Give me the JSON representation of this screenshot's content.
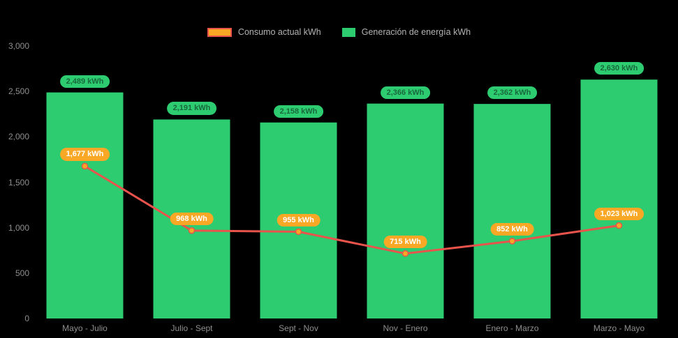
{
  "chart_data": {
    "type": "bar",
    "subtype": "bar-line-combo",
    "title": "",
    "categories": [
      "Mayo - Julio",
      "Julio - Sept",
      "Sept - Nov",
      "Nov - Enero",
      "Enero - Marzo",
      "Marzo - Mayo"
    ],
    "series": [
      {
        "id": "consumo",
        "name": "Consumo actual kWh",
        "type": "line",
        "values": [
          1677,
          968,
          955,
          715,
          852,
          1023
        ],
        "labels": [
          "1,677 kWh",
          "968 kWh",
          "955 kWh",
          "715 kWh",
          "852 kWh",
          "1,023 kWh"
        ]
      },
      {
        "id": "generacion",
        "name": "Generación de energía kWh",
        "type": "bar",
        "values": [
          2489,
          2191,
          2158,
          2366,
          2362,
          2630
        ],
        "labels": [
          "2,489 kWh",
          "2,191 kWh",
          "2,158 kWh",
          "2,366 kWh",
          "2,362 kWh",
          "2,630 kWh"
        ]
      }
    ],
    "y_ticks": [
      "3,000",
      "2,500",
      "2,000",
      "1,500",
      "1,000",
      "500",
      "0"
    ],
    "ylim": [
      0,
      3000
    ],
    "xlabel": "",
    "ylabel": "",
    "grid": false,
    "legend_position": "top-center",
    "colors": {
      "background": "#000000",
      "bar": "#2dcc70",
      "bar_label_bg": "#2dcc70",
      "bar_label_text": "#19673c",
      "line": "#e8544c",
      "marker": "#f9a825",
      "line_label_bg": "#f9a825",
      "line_label_text": "#ffffff",
      "axis_text": "#8f8f8f",
      "legend_text": "#b3b3b3"
    }
  }
}
